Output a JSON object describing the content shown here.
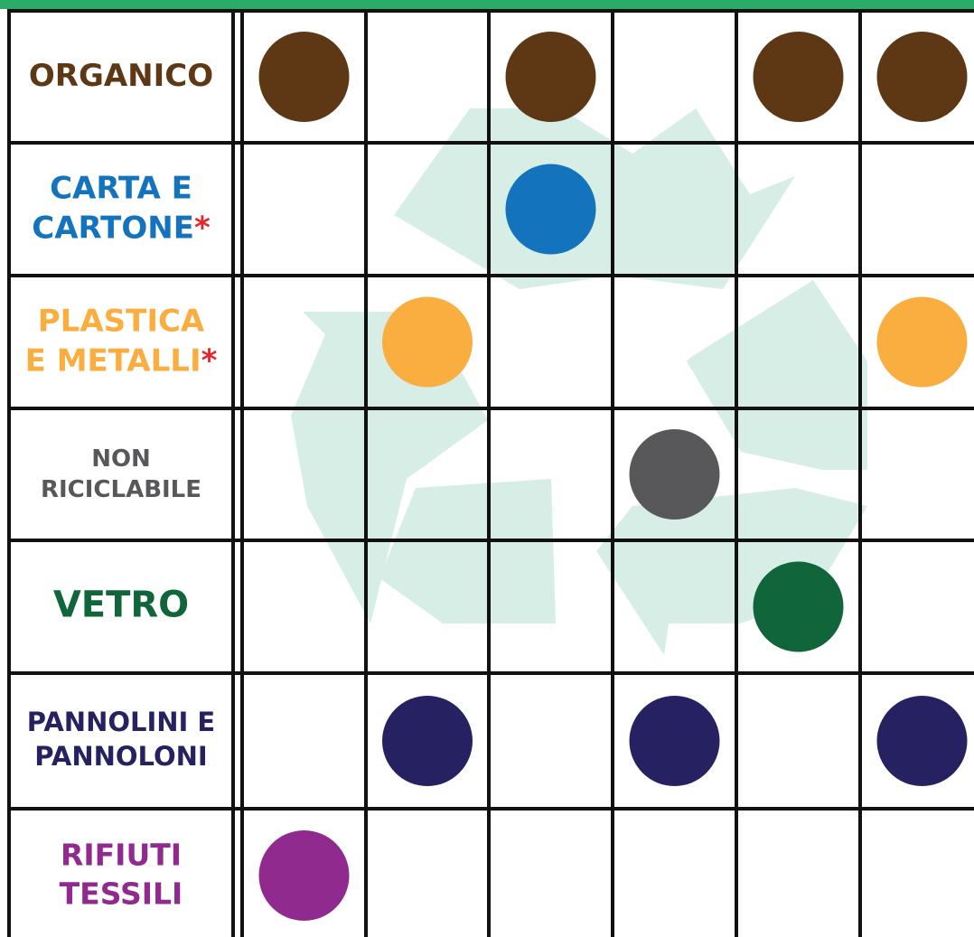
{
  "rows": [
    {
      "label": [
        "ORGANICO"
      ],
      "color": "#5e3714",
      "dots": [
        true,
        false,
        true,
        false,
        true,
        true
      ]
    },
    {
      "label": [
        "CARTA E",
        "CARTONE"
      ],
      "note_mark": "*",
      "color": "#1473bd",
      "dots": [
        false,
        false,
        true,
        false,
        false,
        false
      ]
    },
    {
      "label": [
        "PLASTICA",
        "E METALLI"
      ],
      "note_mark": "*",
      "color": "#f9ae3f",
      "dots": [
        false,
        true,
        false,
        false,
        false,
        true
      ]
    },
    {
      "label": [
        "NON",
        "RICICLABILE"
      ],
      "color": "#58585a",
      "dots": [
        false,
        false,
        false,
        true,
        false,
        false
      ]
    },
    {
      "label": [
        "VETRO"
      ],
      "color": "#10653a",
      "dots": [
        false,
        false,
        false,
        false,
        true,
        false
      ]
    },
    {
      "label": [
        "PANNOLINI E",
        "PANNOLONI"
      ],
      "color": "#262262",
      "dots": [
        false,
        true,
        false,
        true,
        false,
        true
      ]
    },
    {
      "label": [
        "RIFIUTI",
        "TESSILI"
      ],
      "color": "#902a8e",
      "dots": [
        true,
        false,
        false,
        false,
        false,
        false
      ]
    }
  ]
}
